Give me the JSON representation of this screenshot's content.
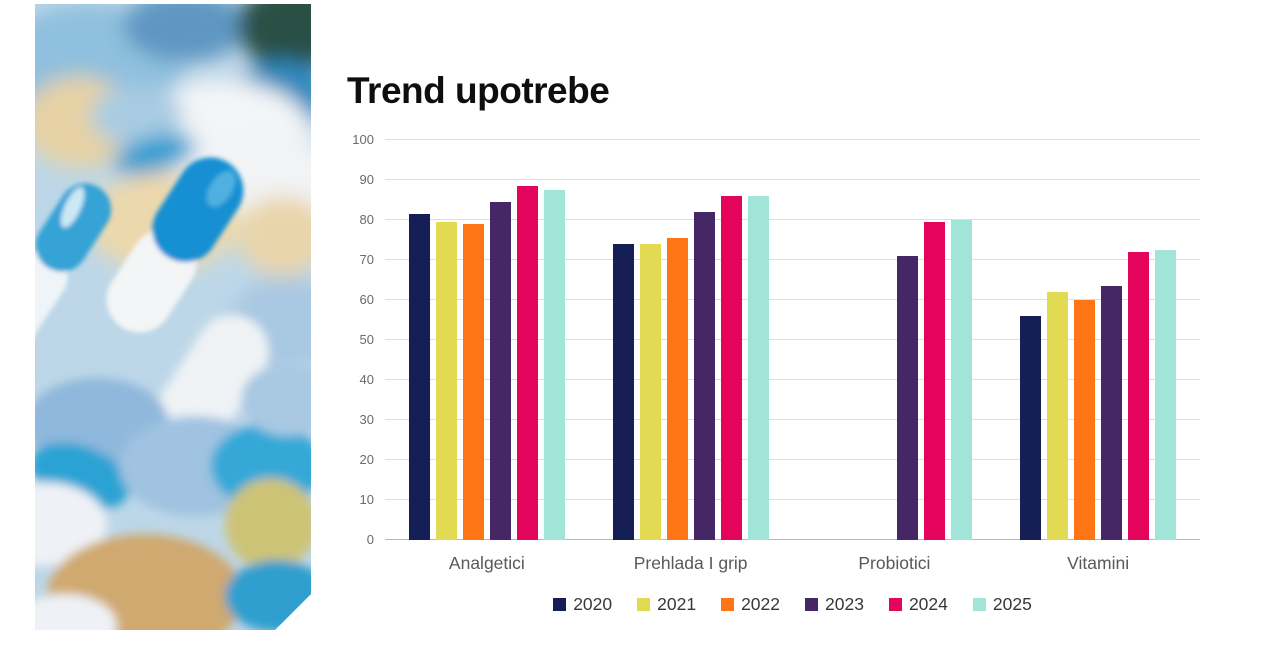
{
  "slide": {
    "title": "Trend upotrebe"
  },
  "chart_data": {
    "type": "bar",
    "title": "Trend upotrebe",
    "categories": [
      "Analgetici",
      "Prehlada I grip",
      "Probiotici",
      "Vitamini"
    ],
    "series": [
      {
        "name": "2020",
        "color": "#161e56",
        "values": [
          81.5,
          74,
          null,
          56
        ]
      },
      {
        "name": "2021",
        "color": "#e2da52",
        "values": [
          79.5,
          74,
          null,
          62
        ]
      },
      {
        "name": "2022",
        "color": "#fd7514",
        "values": [
          79,
          75.5,
          null,
          60
        ]
      },
      {
        "name": "2023",
        "color": "#452766",
        "values": [
          84.5,
          82,
          71,
          63.5
        ]
      },
      {
        "name": "2024",
        "color": "#e5045c",
        "values": [
          88.5,
          86,
          79.5,
          72
        ]
      },
      {
        "name": "2025",
        "color": "#a0e5d8",
        "values": [
          87.5,
          86,
          80,
          72.5
        ]
      }
    ],
    "ylim": [
      0,
      100
    ],
    "yticks": [
      0,
      10,
      20,
      30,
      40,
      50,
      60,
      70,
      80,
      90,
      100
    ],
    "grid": true,
    "grid_color": "#dedede",
    "axis_label_color": "#6a6a6a",
    "category_label_color": "#595959",
    "legend_position": "bottom"
  }
}
